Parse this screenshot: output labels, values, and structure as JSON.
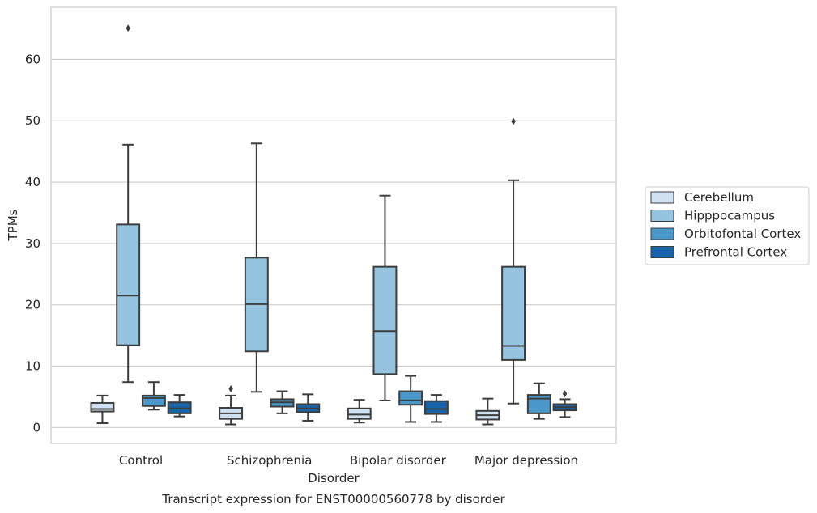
{
  "chart_data": {
    "type": "boxplot",
    "title": "",
    "caption": "Transcript expression for ENST00000560778 by disorder",
    "xlabel": "Disorder",
    "ylabel": "TPMs",
    "ylim": [
      -2.6,
      68.5
    ],
    "yticks": [
      0,
      10,
      20,
      30,
      40,
      50,
      60
    ],
    "grid": "horizontal",
    "legend": "right",
    "categories": [
      "Control",
      "Schizophrenia",
      "Bipolar disorder",
      "Major depression"
    ],
    "series": [
      {
        "name": "Cerebellum",
        "color": "#d0e1f2",
        "boxes": [
          {
            "whislo": 0.7,
            "q1": 2.6,
            "med": 3.0,
            "q3": 4.0,
            "whishi": 5.2,
            "fliers": []
          },
          {
            "whislo": 0.5,
            "q1": 1.4,
            "med": 2.3,
            "q3": 3.2,
            "whishi": 5.2,
            "fliers": [
              6.3
            ]
          },
          {
            "whislo": 0.8,
            "q1": 1.4,
            "med": 2.1,
            "q3": 3.1,
            "whishi": 4.5,
            "fliers": []
          },
          {
            "whislo": 0.5,
            "q1": 1.3,
            "med": 2.0,
            "q3": 2.7,
            "whishi": 4.7,
            "fliers": []
          }
        ]
      },
      {
        "name": "Hipppocampus",
        "color": "#94c4df",
        "boxes": [
          {
            "whislo": 7.4,
            "q1": 13.4,
            "med": 21.5,
            "q3": 33.1,
            "whishi": 46.1,
            "fliers": [
              65.1
            ]
          },
          {
            "whislo": 5.8,
            "q1": 12.4,
            "med": 20.1,
            "q3": 27.7,
            "whishi": 46.3,
            "fliers": []
          },
          {
            "whislo": 4.4,
            "q1": 8.7,
            "med": 15.7,
            "q3": 26.2,
            "whishi": 37.8,
            "fliers": []
          },
          {
            "whislo": 3.9,
            "q1": 11.0,
            "med": 13.3,
            "q3": 26.2,
            "whishi": 40.3,
            "fliers": [
              49.9
            ]
          }
        ]
      },
      {
        "name": "Orbitofontal Cortex",
        "color": "#4a98c9",
        "boxes": [
          {
            "whislo": 2.9,
            "q1": 3.5,
            "med": 4.8,
            "q3": 5.2,
            "whishi": 7.4,
            "fliers": []
          },
          {
            "whislo": 2.3,
            "q1": 3.4,
            "med": 4.1,
            "q3": 4.6,
            "whishi": 5.9,
            "fliers": []
          },
          {
            "whislo": 0.9,
            "q1": 3.7,
            "med": 4.4,
            "q3": 5.9,
            "whishi": 8.4,
            "fliers": []
          },
          {
            "whislo": 1.4,
            "q1": 2.3,
            "med": 4.7,
            "q3": 5.3,
            "whishi": 7.2,
            "fliers": []
          }
        ]
      },
      {
        "name": "Prefrontal Cortex",
        "color": "#1764ab",
        "boxes": [
          {
            "whislo": 1.8,
            "q1": 2.3,
            "med": 3.1,
            "q3": 4.1,
            "whishi": 5.3,
            "fliers": []
          },
          {
            "whislo": 1.1,
            "q1": 2.5,
            "med": 3.1,
            "q3": 3.8,
            "whishi": 5.4,
            "fliers": []
          },
          {
            "whislo": 0.9,
            "q1": 2.2,
            "med": 3.0,
            "q3": 4.3,
            "whishi": 5.3,
            "fliers": []
          },
          {
            "whislo": 1.7,
            "q1": 2.8,
            "med": 3.3,
            "q3": 3.8,
            "whishi": 4.6,
            "fliers": [
              5.5
            ]
          }
        ]
      }
    ]
  }
}
